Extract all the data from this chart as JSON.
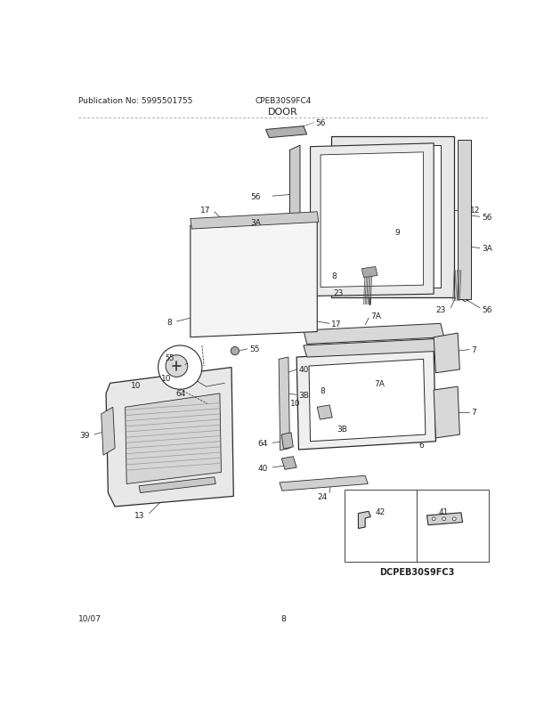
{
  "title": "DOOR",
  "pub_no": "Publication No: 5995501755",
  "model": "CPEB30S9FC4",
  "date": "10/07",
  "page": "8",
  "dcmodel": "DCPEB30S9FC3",
  "bg_color": "#ffffff",
  "line_color": "#2a2a2a",
  "gray_fill": "#e0e0e0",
  "dark_gray": "#b0b0b0",
  "light_gray": "#f0f0f0",
  "text_color": "#222222"
}
